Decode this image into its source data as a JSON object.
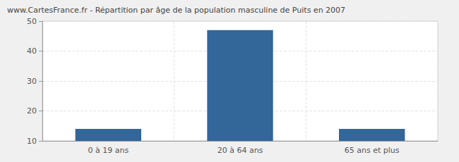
{
  "chart_data": {
    "type": "bar",
    "title": "www.CartesFrance.fr - Répartition par âge de la population masculine de Puits en 2007",
    "categories": [
      "0 à 19 ans",
      "20 à 64 ans",
      "65 ans et plus"
    ],
    "values": [
      14,
      47,
      14
    ],
    "color": "#336699",
    "ylim": [
      10,
      50
    ],
    "yticks": [
      10,
      20,
      30,
      40,
      50
    ],
    "grid": true
  }
}
